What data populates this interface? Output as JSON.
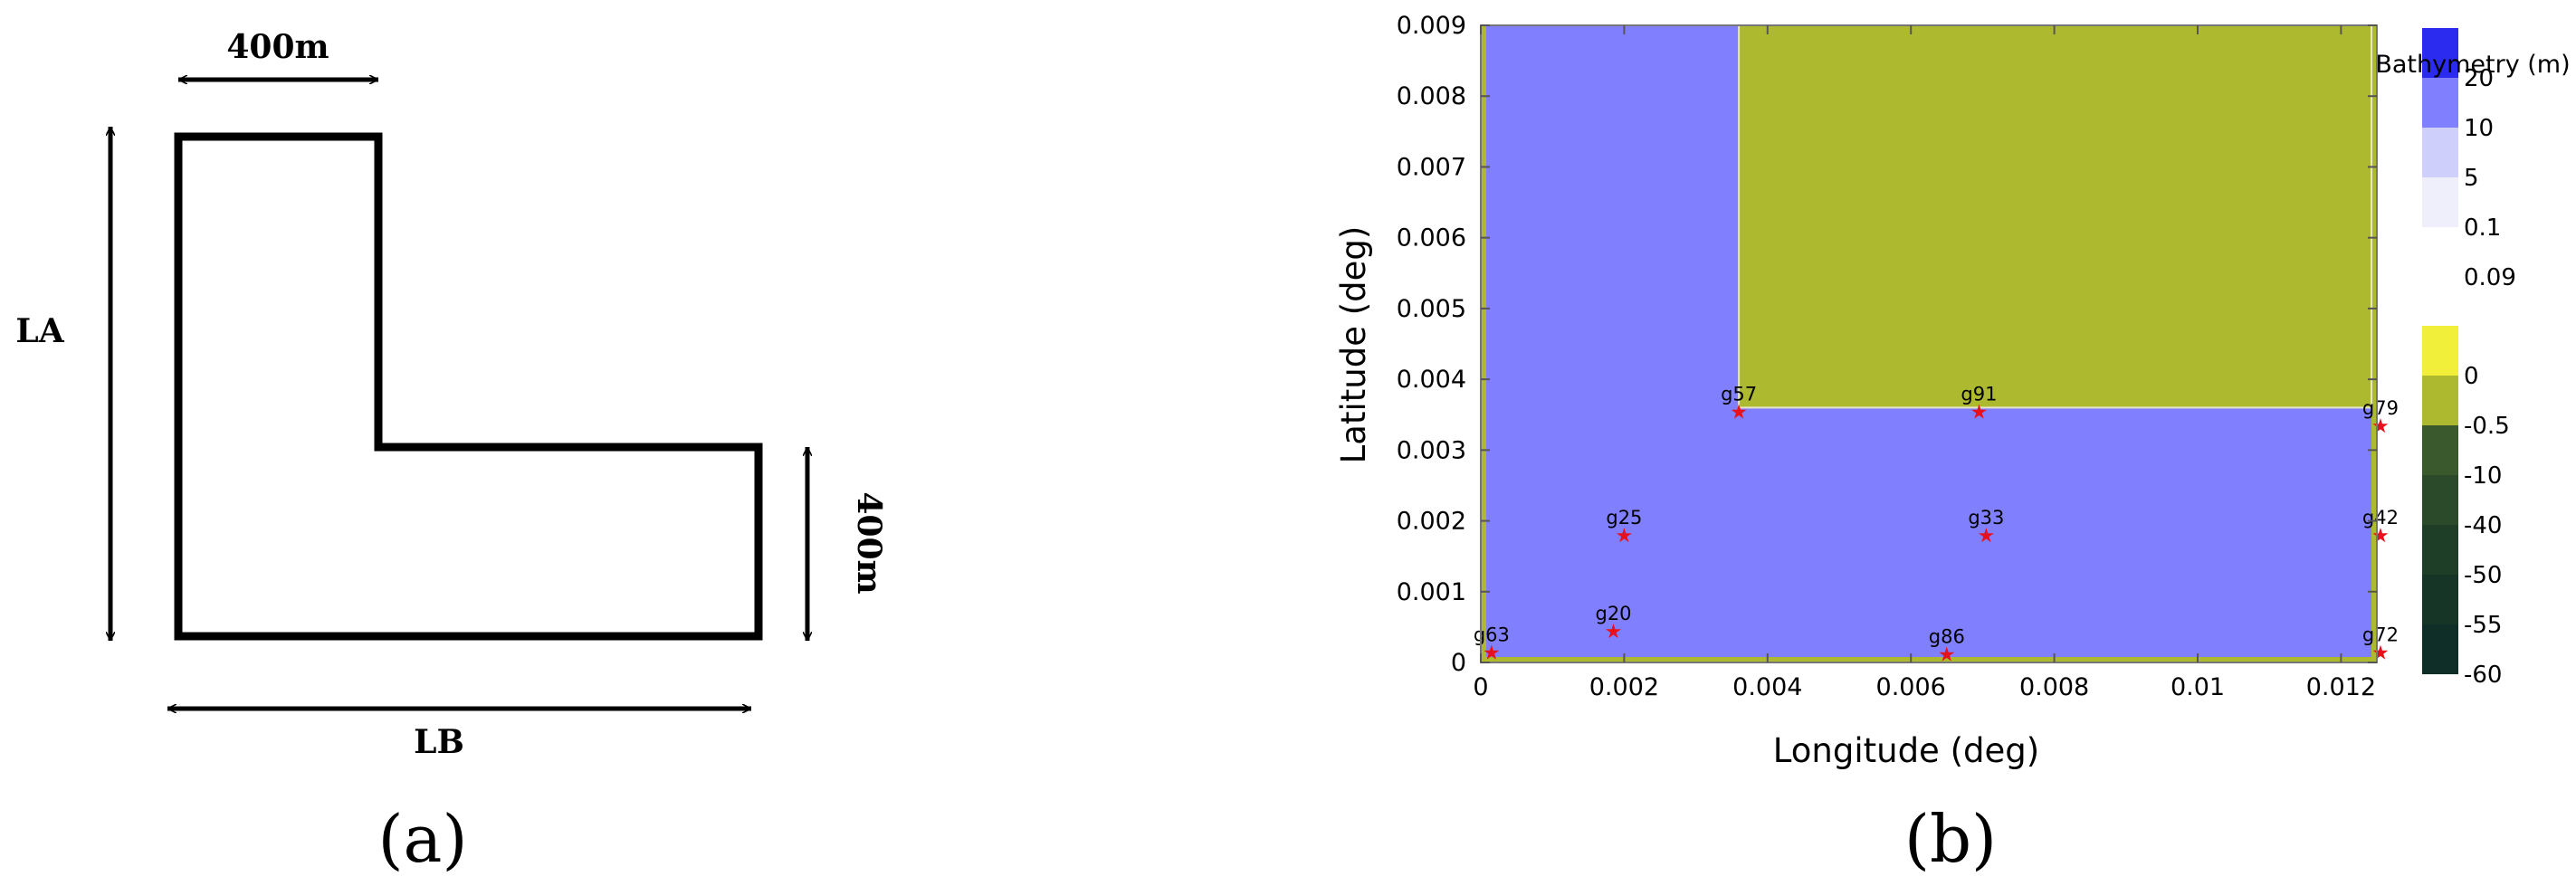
{
  "panel_a": {
    "dim_top": "400m",
    "dim_left": "LA",
    "dim_right": "400m",
    "dim_bottom": "LB",
    "caption": "(a)"
  },
  "panel_b": {
    "caption": "(b)",
    "colors": {
      "water": "#8080ff",
      "land": "#adb92f",
      "gauge": "#e8101a"
    }
  },
  "chart_data": {
    "type": "map",
    "xlabel": "Longitude (deg)",
    "ylabel": "Latitude (deg)",
    "xlim": [
      0,
      0.0125
    ],
    "ylim": [
      0,
      0.009
    ],
    "xticks": [
      {
        "value": 0,
        "label": "0"
      },
      {
        "value": 0.002,
        "label": "0.002"
      },
      {
        "value": 0.004,
        "label": "0.004"
      },
      {
        "value": 0.006,
        "label": "0.006"
      },
      {
        "value": 0.008,
        "label": "0.008"
      },
      {
        "value": 0.01,
        "label": "0.01"
      },
      {
        "value": 0.012,
        "label": "0.012"
      }
    ],
    "yticks": [
      {
        "value": 0,
        "label": "0"
      },
      {
        "value": 0.001,
        "label": "0.001"
      },
      {
        "value": 0.002,
        "label": "0.002"
      },
      {
        "value": 0.003,
        "label": "0.003"
      },
      {
        "value": 0.004,
        "label": "0.004"
      },
      {
        "value": 0.005,
        "label": "0.005"
      },
      {
        "value": 0.006,
        "label": "0.006"
      },
      {
        "value": 0.007,
        "label": "0.007"
      },
      {
        "value": 0.008,
        "label": "0.008"
      },
      {
        "value": 0.009,
        "label": "0.009"
      }
    ],
    "land_region": {
      "x": [
        0.0036,
        0.0125
      ],
      "y": [
        0.0036,
        0.009
      ]
    },
    "gauges": [
      {
        "name": "g63",
        "x": 0.00015,
        "y": 0.00015
      },
      {
        "name": "g20",
        "x": 0.00185,
        "y": 0.00045
      },
      {
        "name": "g86",
        "x": 0.0065,
        "y": 0.00012
      },
      {
        "name": "g72",
        "x": 0.01255,
        "y": 0.00015
      },
      {
        "name": "g25",
        "x": 0.002,
        "y": 0.0018
      },
      {
        "name": "g33",
        "x": 0.00705,
        "y": 0.0018
      },
      {
        "name": "g42",
        "x": 0.01255,
        "y": 0.0018
      },
      {
        "name": "g57",
        "x": 0.0036,
        "y": 0.00355
      },
      {
        "name": "g91",
        "x": 0.00695,
        "y": 0.00355
      },
      {
        "name": "g79",
        "x": 0.01255,
        "y": 0.00335
      }
    ],
    "colorbar": {
      "title": "Bathymetry (m)",
      "bands": [
        {
          "color": "#2b2bf0"
        },
        {
          "color": "#8080ff"
        },
        {
          "color": "#cfcffb"
        },
        {
          "color": "#efeffc"
        },
        {
          "color": "#ffffff"
        },
        {
          "color": "#f2ef3a"
        },
        {
          "color": "#adb92f"
        },
        {
          "color": "#3a5a2e"
        },
        {
          "color": "#2b4a29"
        },
        {
          "color": "#1f3e27"
        },
        {
          "color": "#173527"
        },
        {
          "color": "#0f2e28"
        }
      ],
      "labels": [
        "20",
        "10",
        "5",
        "0.1",
        "0.09",
        "0",
        "-0.5",
        "-10",
        "-40",
        "-50",
        "-55",
        "-60"
      ]
    }
  }
}
